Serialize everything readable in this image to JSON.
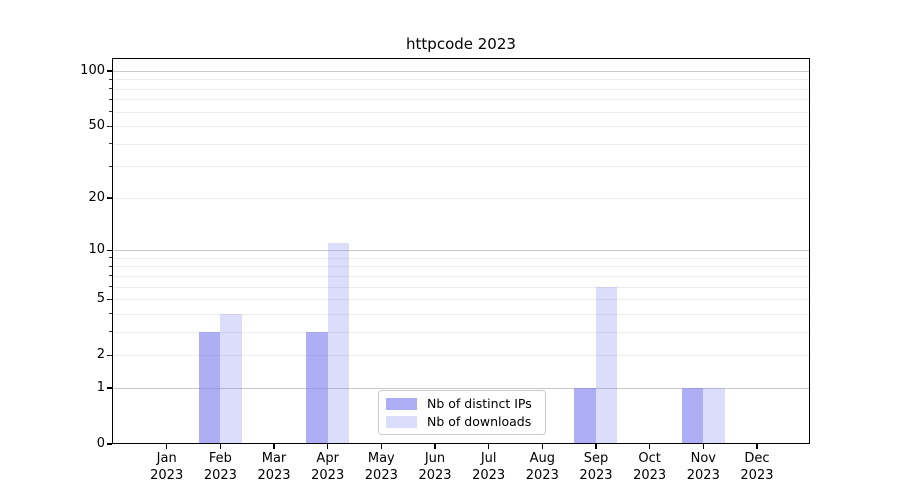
{
  "title": "httpcode 2023",
  "chart_data": {
    "type": "bar",
    "title": "httpcode 2023",
    "categories": [
      "Jan",
      "Feb",
      "Mar",
      "Apr",
      "May",
      "Jun",
      "Jul",
      "Aug",
      "Sep",
      "Oct",
      "Nov",
      "Dec"
    ],
    "category_year": "2023",
    "series": [
      {
        "name": "Nb of distinct IPs",
        "color": "#8282f0",
        "alpha": 0.65,
        "values": [
          0,
          3,
          0,
          3,
          0,
          0,
          0,
          0,
          1,
          0,
          1,
          0
        ]
      },
      {
        "name": "Nb of downloads",
        "color": "#8282f0",
        "alpha": 0.28,
        "values": [
          0,
          4,
          0,
          11,
          0,
          0,
          0,
          0,
          6,
          0,
          1,
          0
        ]
      }
    ],
    "yscale": "log1p",
    "ylim": [
      0,
      117
    ],
    "yticks": [
      0,
      1,
      2,
      5,
      10,
      20,
      50,
      100
    ],
    "major_grid_values": [
      1,
      10,
      100
    ],
    "minor_grid_values": [
      2,
      3,
      4,
      5,
      6,
      7,
      8,
      9,
      20,
      30,
      40,
      50,
      60,
      70,
      80,
      90
    ],
    "grid": true,
    "legend_position": "lower center",
    "colors": {
      "major_grid": "#c8c8c8",
      "minor_grid": "#ececec",
      "axis": "#000000",
      "background": "#ffffff"
    }
  }
}
